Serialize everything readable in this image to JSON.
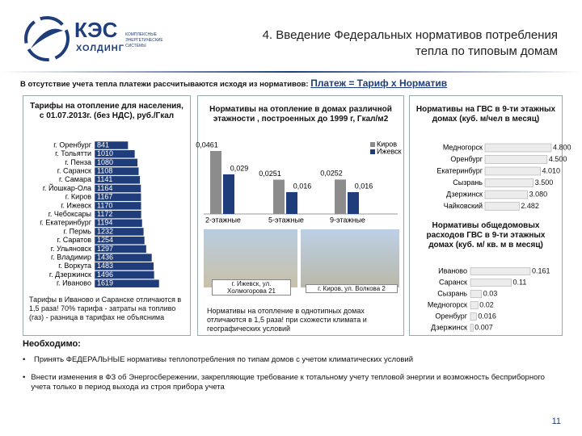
{
  "header": {
    "logo": "КЭС",
    "logo_sub": "ХОЛДИНГ",
    "tagline": "КОМПЛЕКСНЫЕ ЭНЕРГЕТИЧЕСКИЕ СИСТЕМЫ",
    "title": "4. Введение Федеральных нормативов потребления тепла по типовым домам"
  },
  "intro": {
    "text": "В отсутствие учета тепла платежи рассчитываются исходя из нормативов:",
    "formula": "Платеж = Тариф х Норматив"
  },
  "chart_data": [
    {
      "type": "hbar",
      "title": "Тарифы на отопление для населения, с 01.07.2013г. (без НДС), руб./Гкал",
      "categories": [
        "г. Оренбург",
        "г. Тольятти",
        "г. Пенза",
        "г. Саранск",
        "г. Самара",
        "г. Йошкар-Ола",
        "г. Киров",
        "г. Ижевск",
        "г. Чебоксары",
        "г. Екатеринбург",
        "г. Пермь",
        "г. Саратов",
        "г. Ульяновск",
        "г. Владимир",
        "г. Воркута",
        "г. Дзержинск",
        "г. Иваново"
      ],
      "values": [
        841,
        1010,
        1080,
        1108,
        1141,
        1164,
        1167,
        1170,
        1172,
        1194,
        1232,
        1254,
        1297,
        1436,
        1483,
        1496,
        1619
      ],
      "color": "#1f3d7a",
      "note": "Тарифы в Иваново и Саранске отличаются в 1,5 раза! 70% тарифа - затраты на топливо (газ) - разница в тарифах не объяснима"
    },
    {
      "type": "groupbar",
      "title": "Нормативы на отопление в домах различной этажности , построенных до 1999 г, Гкал/м2",
      "categories": [
        "2-этажные",
        "5-этажные",
        "9-этажные"
      ],
      "series": [
        {
          "name": "Киров",
          "color": "#8c8c8c",
          "values": [
            0.0461,
            0.0251,
            0.0252
          ],
          "value_labels": [
            "0,0461",
            "0,0251",
            "0,0252"
          ]
        },
        {
          "name": "Ижевск",
          "color": "#1f3d7a",
          "values": [
            0.029,
            0.016,
            0.016
          ],
          "value_labels": [
            "0,029",
            "0,016",
            "0,016"
          ]
        }
      ],
      "photos": [
        "г. Ижевск, ул. Холмогорова 21",
        "г. Киров, ул. Волкова 2"
      ],
      "note": "Нормативы на отопление в однотипных домах отличаются в 1,5 раза! при схожести климата и географических условий"
    },
    {
      "type": "hbar",
      "title": "Нормативы на ГВС в 9-ти этажных домах (куб. м/чел в месяц)",
      "categories": [
        "Медногорск",
        "Оренбург",
        "Екатеринбург",
        "Сызрань",
        "Дзержинск",
        "Чайковский"
      ],
      "values": [
        4.8,
        4.5,
        4.01,
        3.5,
        3.08,
        2.482
      ],
      "value_labels": [
        "4.800",
        "4.500",
        "4.010",
        "3.500",
        "3.080",
        "2.482"
      ],
      "color": "#ececec"
    },
    {
      "type": "hbar",
      "title": "Нормативы общедомовых расходов ГВС в 9-ти этажных домах (куб. м/ кв. м в месяц)",
      "categories": [
        "Иваново",
        "Саранск",
        "Сызрань",
        "Медногорск",
        "Оренбург",
        "Дзержинск"
      ],
      "values": [
        0.161,
        0.11,
        0.03,
        0.02,
        0.016,
        0.007
      ],
      "color": "#ececec"
    }
  ],
  "needed": {
    "heading": "Необходимо:",
    "items": [
      "Принять ФЕДЕРАЛЬНЫЕ нормативы теплопотребления по типам домов с учетом климатических условий",
      "Внести изменения в ФЗ об Энергосбережении, закрепляющие требование к тотальному учету тепловой энергии и возможность бесприборного учета только в период выхода из строя прибора учета"
    ]
  },
  "page_number": "11"
}
